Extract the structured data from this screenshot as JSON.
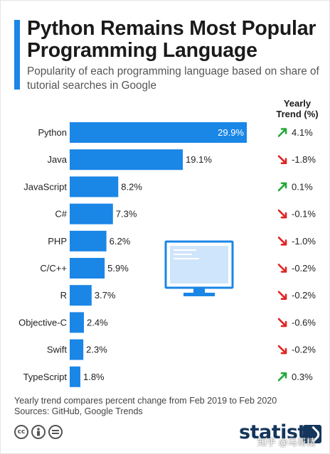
{
  "header": {
    "title": "Python Remains Most Popular Programming Language",
    "subtitle": "Popularity of each programming language based on share of tutorial searches in Google"
  },
  "trend_header": "Yearly Trend (%)",
  "colors": {
    "bar": "#1a86e6",
    "accent": "#1a86e6",
    "up": "#22a83a",
    "down": "#e02424",
    "brand": "#14365c",
    "monitor": "#1a86e6"
  },
  "chart_data": {
    "type": "bar",
    "orientation": "horizontal",
    "title": "Python Remains Most Popular Programming Language",
    "subtitle": "Popularity of each programming language based on share of tutorial searches in Google",
    "categories": [
      "Python",
      "Java",
      "JavaScript",
      "C#",
      "PHP",
      "C/C++",
      "R",
      "Objective-C",
      "Swift",
      "TypeScript"
    ],
    "values": [
      29.9,
      19.1,
      8.2,
      7.3,
      6.2,
      5.9,
      3.7,
      2.4,
      2.3,
      1.8
    ],
    "value_labels": [
      "29.9%",
      "19.1%",
      "8.2%",
      "7.3%",
      "6.2%",
      "5.9%",
      "3.7%",
      "2.4%",
      "2.3%",
      "1.8%"
    ],
    "trend_values": [
      4.1,
      -1.8,
      0.1,
      -0.1,
      -1.0,
      -0.2,
      -0.2,
      -0.6,
      -0.2,
      0.3
    ],
    "trend_labels": [
      "4.1%",
      "-1.8%",
      "0.1%",
      "-0.1%",
      "-1.0%",
      "-0.2%",
      "-0.2%",
      "-0.6%",
      "-0.2%",
      "0.3%"
    ],
    "xlim": [
      0,
      29.9
    ],
    "grid": false,
    "legend": "none"
  },
  "footer": {
    "note": "Yearly trend compares percent change from Feb 2019 to Feb 2020",
    "sources": "Sources: GitHub, Google Trends",
    "brand": "statista",
    "watermark": "知乎 @马哥精",
    "license_icons": [
      "cc-icon",
      "by-icon",
      "nd-icon"
    ]
  }
}
